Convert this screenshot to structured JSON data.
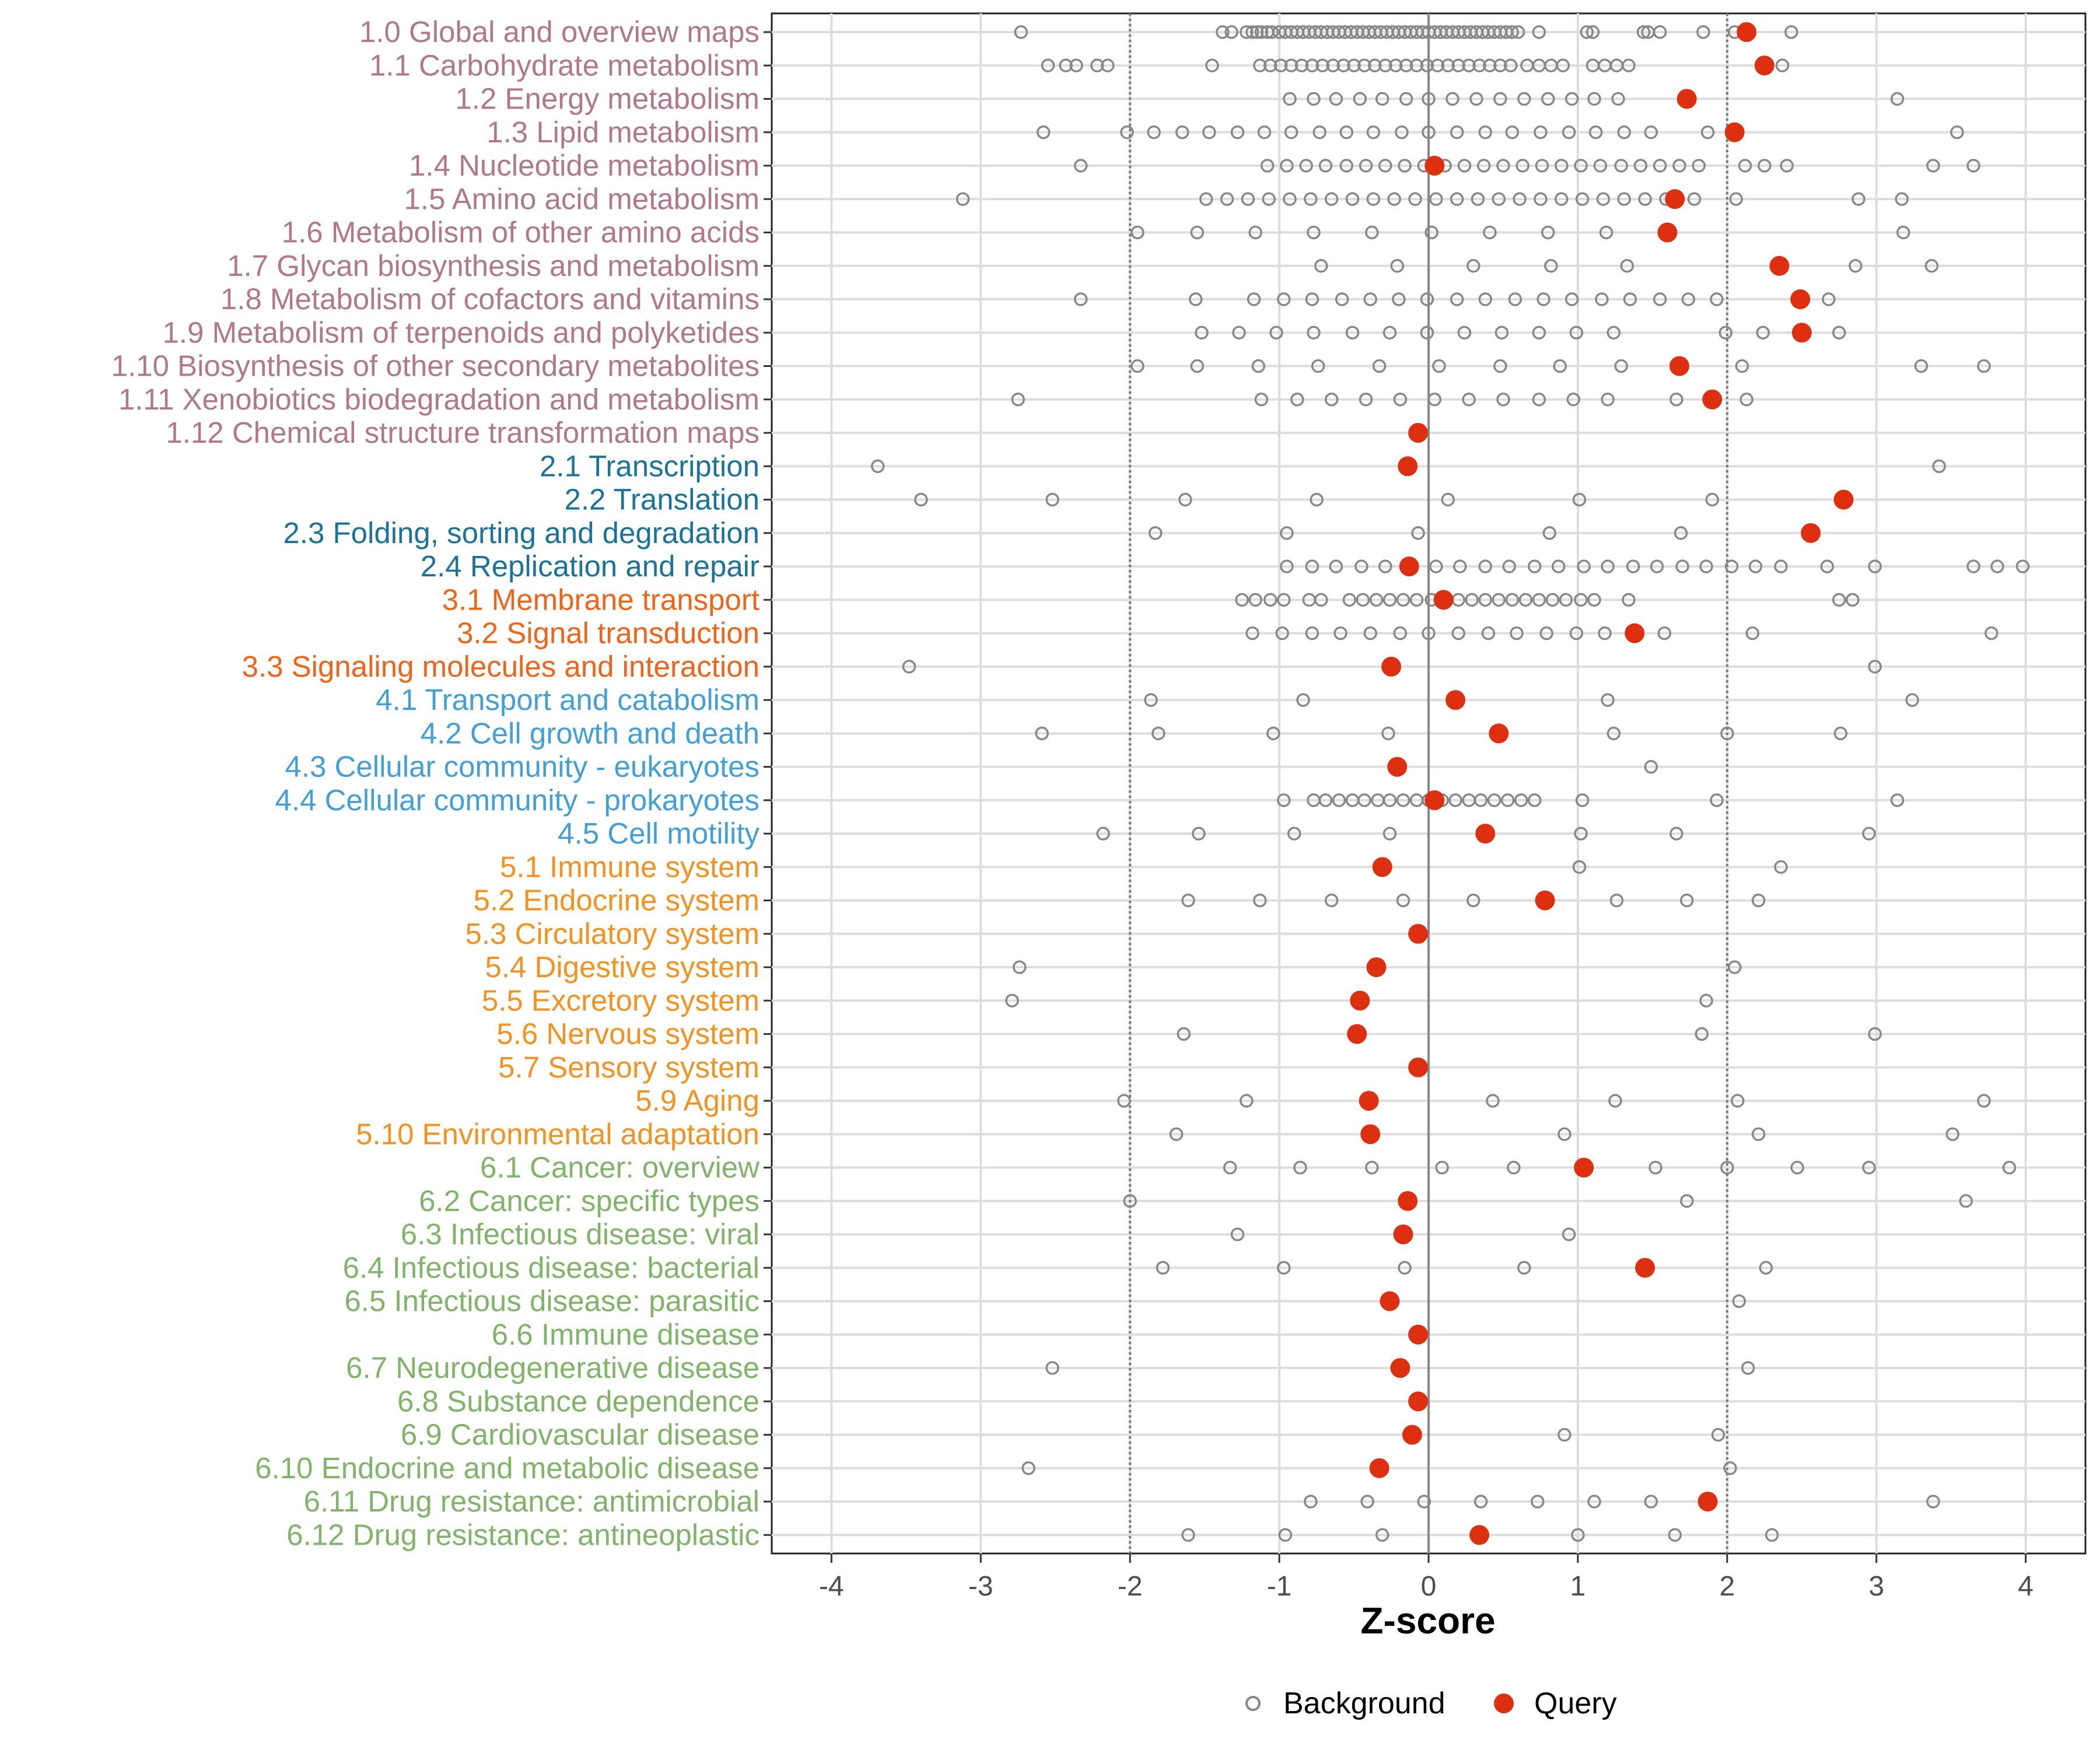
{
  "chart_data": {
    "type": "scatter",
    "title": "",
    "xlabel": "Z-score",
    "ylabel": "",
    "xlim": [
      -4.4,
      4.4
    ],
    "xticks": [
      -4,
      -3,
      -2,
      -1,
      0,
      1,
      2,
      3,
      4
    ],
    "xtick_labels": [
      "-4",
      "-3",
      "-2",
      "-1",
      "0",
      "1",
      "2",
      "3",
      "4"
    ],
    "reference_lines": {
      "dotted": [
        -2,
        2
      ],
      "solid": [
        0
      ]
    },
    "legend": {
      "position": "bottom",
      "items": [
        {
          "label": "Background",
          "marker": "open-circle",
          "color": "#888888"
        },
        {
          "label": "Query",
          "marker": "filled-circle",
          "color": "#DD3010"
        }
      ]
    },
    "group_colors": {
      "1": "#B07888",
      "2": "#1A7399",
      "3": "#F06418",
      "4": "#42A0D8",
      "5": "#F49220",
      "6": "#80B468"
    },
    "categories": [
      {
        "label": "1.0 Global and overview maps",
        "group": "1",
        "query": 2.13,
        "background": [
          -2.73,
          -1.38,
          -1.32,
          -1.22,
          -1.18,
          -1.15,
          -1.12,
          -1.08,
          -1.05,
          -1.0,
          -0.96,
          -0.92,
          -0.88,
          -0.84,
          -0.8,
          -0.76,
          -0.72,
          -0.68,
          -0.64,
          -0.6,
          -0.56,
          -0.52,
          -0.48,
          -0.44,
          -0.4,
          -0.36,
          -0.32,
          -0.28,
          -0.24,
          -0.2,
          -0.16,
          -0.12,
          -0.08,
          -0.04,
          0.0,
          0.04,
          0.08,
          0.12,
          0.16,
          0.2,
          0.24,
          0.28,
          0.32,
          0.36,
          0.4,
          0.44,
          0.48,
          0.52,
          0.56,
          0.6,
          0.74,
          1.06,
          1.1,
          1.44,
          1.47,
          1.55,
          1.84,
          2.05,
          2.43
        ]
      },
      {
        "label": "1.1 Carbohydrate metabolism",
        "group": "1",
        "query": 2.25,
        "background": [
          -2.55,
          -2.43,
          -2.36,
          -2.22,
          -2.15,
          -1.45,
          -1.13,
          -1.06,
          -0.99,
          -0.92,
          -0.85,
          -0.78,
          -0.71,
          -0.64,
          -0.57,
          -0.5,
          -0.43,
          -0.36,
          -0.29,
          -0.22,
          -0.15,
          -0.08,
          -0.01,
          0.06,
          0.13,
          0.2,
          0.27,
          0.34,
          0.41,
          0.48,
          0.55,
          0.66,
          0.74,
          0.82,
          0.9,
          1.1,
          1.18,
          1.26,
          1.34,
          2.37
        ]
      },
      {
        "label": "1.2 Energy metabolism",
        "group": "1",
        "query": 1.73,
        "background": [
          -0.93,
          -0.77,
          -0.62,
          -0.46,
          -0.31,
          -0.15,
          0.0,
          0.16,
          0.32,
          0.48,
          0.64,
          0.8,
          0.96,
          1.11,
          1.27,
          3.14
        ]
      },
      {
        "label": "1.3 Lipid metabolism",
        "group": "1",
        "query": 2.05,
        "background": [
          -2.58,
          -2.02,
          -1.84,
          -1.65,
          -1.47,
          -1.28,
          -1.1,
          -0.92,
          -0.73,
          -0.55,
          -0.37,
          -0.18,
          0.0,
          0.19,
          0.38,
          0.56,
          0.75,
          0.94,
          1.12,
          1.31,
          1.49,
          1.87,
          3.54
        ]
      },
      {
        "label": "1.4 Nucleotide metabolism",
        "group": "1",
        "query": 0.04,
        "background": [
          -2.33,
          -1.08,
          -0.95,
          -0.82,
          -0.69,
          -0.55,
          -0.42,
          -0.29,
          -0.16,
          -0.03,
          0.11,
          0.24,
          0.37,
          0.5,
          0.63,
          0.76,
          0.89,
          1.02,
          1.15,
          1.29,
          1.42,
          1.55,
          1.68,
          1.81,
          2.12,
          2.25,
          2.4,
          3.38,
          3.65
        ]
      },
      {
        "label": "1.5 Amino acid metabolism",
        "group": "1",
        "query": 1.65,
        "background": [
          -3.12,
          -1.49,
          -1.35,
          -1.21,
          -1.07,
          -0.93,
          -0.79,
          -0.65,
          -0.51,
          -0.37,
          -0.23,
          -0.09,
          0.05,
          0.19,
          0.33,
          0.47,
          0.61,
          0.75,
          0.89,
          1.03,
          1.17,
          1.31,
          1.45,
          1.59,
          1.78,
          2.06,
          2.88,
          3.17
        ]
      },
      {
        "label": "1.6 Metabolism of other amino acids",
        "group": "1",
        "query": 1.6,
        "background": [
          -1.95,
          -1.55,
          -1.16,
          -0.77,
          -0.38,
          0.02,
          0.41,
          0.8,
          1.19,
          3.18
        ]
      },
      {
        "label": "1.7 Glycan biosynthesis and metabolism",
        "group": "1",
        "query": 2.35,
        "background": [
          -0.72,
          -0.21,
          0.3,
          0.82,
          1.33,
          2.86,
          3.37
        ]
      },
      {
        "label": "1.8 Metabolism of cofactors and vitamins",
        "group": "1",
        "query": 2.49,
        "background": [
          -2.33,
          -1.56,
          -1.17,
          -0.97,
          -0.78,
          -0.58,
          -0.39,
          -0.2,
          -0.01,
          0.19,
          0.38,
          0.58,
          0.77,
          0.96,
          1.16,
          1.35,
          1.55,
          1.74,
          1.93,
          2.68
        ]
      },
      {
        "label": "1.9 Metabolism of terpenoids and polyketides",
        "group": "1",
        "query": 2.5,
        "background": [
          -1.52,
          -1.27,
          -1.02,
          -0.77,
          -0.51,
          -0.26,
          -0.01,
          0.24,
          0.49,
          0.74,
          0.99,
          1.24,
          1.99,
          2.24,
          2.75
        ]
      },
      {
        "label": "1.10 Biosynthesis of other secondary metabolites",
        "group": "1",
        "query": 1.68,
        "background": [
          -1.95,
          -1.55,
          -1.14,
          -0.74,
          -0.33,
          0.07,
          0.48,
          0.88,
          1.29,
          2.1,
          3.3,
          3.72
        ]
      },
      {
        "label": "1.11 Xenobiotics biodegradation and metabolism",
        "group": "1",
        "query": 1.9,
        "background": [
          -2.75,
          -1.12,
          -0.88,
          -0.65,
          -0.42,
          -0.19,
          0.04,
          0.27,
          0.5,
          0.74,
          0.97,
          1.2,
          1.66,
          2.13
        ]
      },
      {
        "label": "1.12 Chemical structure transformation maps",
        "group": "1",
        "query": -0.07,
        "background": []
      },
      {
        "label": "2.1 Transcription",
        "group": "2",
        "query": -0.14,
        "background": [
          -3.69,
          3.42
        ]
      },
      {
        "label": "2.2 Translation",
        "group": "2",
        "query": 2.78,
        "background": [
          -3.4,
          -2.52,
          -1.63,
          -0.75,
          0.13,
          1.01,
          1.9
        ]
      },
      {
        "label": "2.3 Folding, sorting and degradation",
        "group": "2",
        "query": 2.56,
        "background": [
          -1.83,
          -0.95,
          -0.07,
          0.81,
          1.69
        ]
      },
      {
        "label": "2.4 Replication and repair",
        "group": "2",
        "query": -0.13,
        "background": [
          -0.95,
          -0.78,
          -0.62,
          -0.45,
          -0.29,
          0.05,
          0.21,
          0.38,
          0.54,
          0.71,
          0.87,
          1.04,
          1.2,
          1.37,
          1.53,
          1.7,
          1.86,
          2.03,
          2.19,
          2.36,
          2.67,
          2.99,
          3.65,
          3.81,
          3.98
        ]
      },
      {
        "label": "3.1 Membrane transport",
        "group": "3",
        "query": 0.1,
        "background": [
          -1.25,
          -1.16,
          -1.06,
          -0.97,
          -0.8,
          -0.72,
          -0.53,
          -0.44,
          -0.35,
          -0.26,
          -0.17,
          -0.08,
          0.02,
          0.2,
          0.29,
          0.38,
          0.47,
          0.56,
          0.65,
          0.74,
          0.83,
          0.92,
          1.02,
          1.11,
          1.34,
          2.75,
          2.84
        ]
      },
      {
        "label": "3.2 Signal transduction",
        "group": "3",
        "query": 1.38,
        "background": [
          -1.18,
          -0.98,
          -0.78,
          -0.59,
          -0.39,
          -0.19,
          0.0,
          0.2,
          0.4,
          0.59,
          0.79,
          0.99,
          1.18,
          1.58,
          2.17,
          3.77
        ]
      },
      {
        "label": "3.3 Signaling molecules and interaction",
        "group": "3",
        "query": -0.25,
        "background": [
          -3.48,
          2.99
        ]
      },
      {
        "label": "4.1 Transport and catabolism",
        "group": "4",
        "query": 0.18,
        "background": [
          -1.86,
          -0.84,
          1.2,
          3.24
        ]
      },
      {
        "label": "4.2 Cell growth and death",
        "group": "4",
        "query": 0.47,
        "background": [
          -2.59,
          -1.81,
          -1.04,
          -0.27,
          1.24,
          2.0,
          2.76
        ]
      },
      {
        "label": "4.3 Cellular community - eukaryotes",
        "group": "4",
        "query": -0.21,
        "background": [
          1.49
        ]
      },
      {
        "label": "4.4 Cellular community - prokaryotes",
        "group": "4",
        "query": 0.04,
        "background": [
          -0.97,
          -0.77,
          -0.69,
          -0.6,
          -0.51,
          -0.43,
          -0.34,
          -0.26,
          -0.17,
          -0.08,
          0.0,
          0.09,
          0.18,
          0.27,
          0.35,
          0.44,
          0.53,
          0.62,
          0.71,
          1.03,
          1.93,
          3.14
        ]
      },
      {
        "label": "4.5 Cell motility",
        "group": "4",
        "query": 0.38,
        "background": [
          -2.18,
          -1.54,
          -0.9,
          -0.26,
          1.02,
          1.66,
          2.95
        ]
      },
      {
        "label": "5.1 Immune system",
        "group": "5",
        "query": -0.31,
        "background": [
          1.01,
          2.36
        ]
      },
      {
        "label": "5.2 Endocrine system",
        "group": "5",
        "query": 0.78,
        "background": [
          -1.61,
          -1.13,
          -0.65,
          -0.17,
          0.3,
          1.26,
          1.73,
          2.21
        ]
      },
      {
        "label": "5.3 Circulatory system",
        "group": "5",
        "query": -0.07,
        "background": []
      },
      {
        "label": "5.4 Digestive system",
        "group": "5",
        "query": -0.35,
        "background": [
          -2.74,
          2.05
        ]
      },
      {
        "label": "5.5 Excretory system",
        "group": "5",
        "query": -0.46,
        "background": [
          -2.79,
          1.86
        ]
      },
      {
        "label": "5.6 Nervous system",
        "group": "5",
        "query": -0.48,
        "background": [
          -1.64,
          1.83,
          2.99
        ]
      },
      {
        "label": "5.7 Sensory system",
        "group": "5",
        "query": -0.07,
        "background": []
      },
      {
        "label": "5.9 Aging",
        "group": "5",
        "query": -0.4,
        "background": [
          -2.04,
          -1.22,
          0.43,
          1.25,
          2.07,
          3.72
        ]
      },
      {
        "label": "5.10 Environmental adaptation",
        "group": "5",
        "query": -0.39,
        "background": [
          -1.69,
          0.91,
          2.21,
          3.51
        ]
      },
      {
        "label": "6.1 Cancer: overview",
        "group": "6",
        "query": 1.04,
        "background": [
          -1.33,
          -0.86,
          -0.38,
          0.09,
          0.57,
          1.52,
          2.0,
          2.47,
          2.95,
          3.89
        ]
      },
      {
        "label": "6.2 Cancer: specific types",
        "group": "6",
        "query": -0.14,
        "background": [
          -2.0,
          1.73,
          3.6
        ]
      },
      {
        "label": "6.3 Infectious disease: viral",
        "group": "6",
        "query": -0.17,
        "background": [
          -1.28,
          0.94
        ]
      },
      {
        "label": "6.4 Infectious disease: bacterial",
        "group": "6",
        "query": 1.45,
        "background": [
          -1.78,
          -0.97,
          -0.16,
          0.64,
          2.26
        ]
      },
      {
        "label": "6.5 Infectious disease: parasitic",
        "group": "6",
        "query": -0.26,
        "background": [
          2.08
        ]
      },
      {
        "label": "6.6 Immune disease",
        "group": "6",
        "query": -0.07,
        "background": []
      },
      {
        "label": "6.7 Neurodegenerative disease",
        "group": "6",
        "query": -0.19,
        "background": [
          -2.52,
          2.14
        ]
      },
      {
        "label": "6.8 Substance dependence",
        "group": "6",
        "query": -0.07,
        "background": []
      },
      {
        "label": "6.9 Cardiovascular disease",
        "group": "6",
        "query": -0.11,
        "background": [
          0.91,
          1.94
        ]
      },
      {
        "label": "6.10 Endocrine and metabolic disease",
        "group": "6",
        "query": -0.33,
        "background": [
          -2.68,
          2.02
        ]
      },
      {
        "label": "6.11 Drug resistance: antimicrobial",
        "group": "6",
        "query": 1.87,
        "background": [
          -0.79,
          -0.41,
          -0.03,
          0.35,
          0.73,
          1.11,
          1.49,
          3.38
        ]
      },
      {
        "label": "6.12 Drug resistance: antineoplastic",
        "group": "6",
        "query": 0.34,
        "background": [
          -1.61,
          -0.96,
          -0.31,
          1.0,
          1.65,
          2.3
        ]
      }
    ]
  }
}
